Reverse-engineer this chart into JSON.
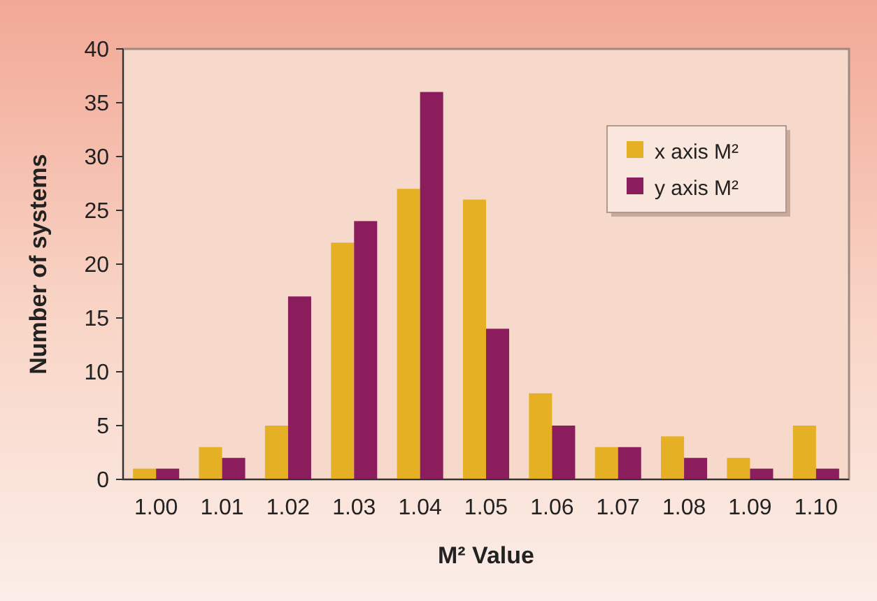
{
  "chart_data": {
    "type": "bar",
    "xlabel": "M² Value",
    "ylabel": "Number of systems",
    "categories": [
      "1.00",
      "1.01",
      "1.02",
      "1.03",
      "1.04",
      "1.05",
      "1.06",
      "1.07",
      "1.08",
      "1.09",
      "1.10"
    ],
    "series": [
      {
        "name": "x axis M²",
        "color": "#e5b024",
        "values": [
          1,
          3,
          5,
          22,
          27,
          26,
          8,
          3,
          4,
          2,
          5
        ]
      },
      {
        "name": "y axis M²",
        "color": "#8c1d5c",
        "values": [
          1,
          2,
          17,
          24,
          36,
          14,
          5,
          3,
          2,
          1,
          1
        ]
      }
    ],
    "ylim": [
      0,
      40
    ],
    "yticks": [
      0,
      5,
      10,
      15,
      20,
      25,
      30,
      35,
      40
    ],
    "legend": "top right"
  }
}
